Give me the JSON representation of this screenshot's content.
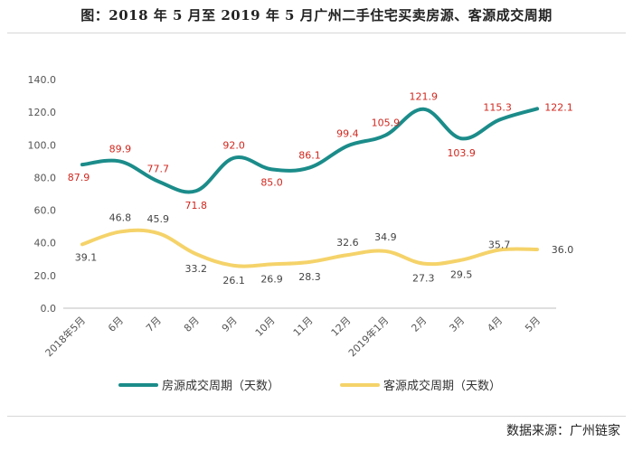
{
  "title": "图：2018 年 5 月至 2019 年 5 月广州二手住宅买卖房源、客源成交周期",
  "source": "数据来源：广州链家",
  "chart_data": {
    "type": "line",
    "categories": [
      "2018年5月",
      "6月",
      "7月",
      "8月",
      "9月",
      "10月",
      "11月",
      "12月",
      "2019年1月",
      "2月",
      "3月",
      "4月",
      "5月"
    ],
    "ylim": [
      0,
      140
    ],
    "yticks": [
      "0.0",
      "20.0",
      "40.0",
      "60.0",
      "80.0",
      "100.0",
      "120.0",
      "140.0"
    ],
    "grid": false,
    "legend": "bottom",
    "series": [
      {
        "name": "房源成交周期（天数）",
        "color": "#1b8c8a",
        "values": [
          87.9,
          89.9,
          77.7,
          71.8,
          92.0,
          85.0,
          86.1,
          99.4,
          105.9,
          121.9,
          103.9,
          115.3,
          122.1
        ],
        "label_color": "#d0271e"
      },
      {
        "name": "客源成交周期（天数）",
        "color": "#f5d36a",
        "values": [
          39.1,
          46.8,
          45.9,
          33.2,
          26.1,
          26.9,
          28.3,
          32.6,
          34.9,
          27.3,
          29.5,
          35.7,
          36.0
        ],
        "label_color": "#444444"
      }
    ]
  }
}
